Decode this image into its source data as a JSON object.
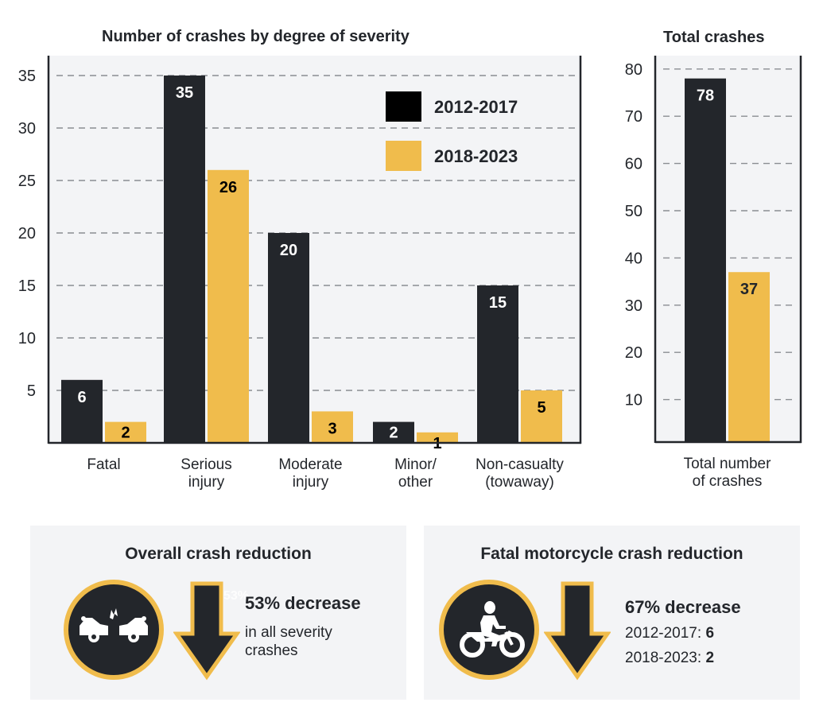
{
  "colors": {
    "dark": "#23262b",
    "gold": "#f0bc4c",
    "legend_dark": "#000000",
    "plot_bg": "#f3f4f6",
    "grid": "#8a8d92"
  },
  "chart_data": [
    {
      "type": "bar",
      "title": "Number of crashes by degree of severity",
      "categories": [
        "Fatal",
        "Serious injury",
        "Moderate injury",
        "Minor/ other",
        "Non-casualty (towaway)"
      ],
      "category_lines": [
        [
          "Fatal"
        ],
        [
          "Serious",
          "injury"
        ],
        [
          "Moderate",
          "injury"
        ],
        [
          "Minor/",
          "other"
        ],
        [
          "Non-casualty",
          "(towaway)"
        ]
      ],
      "series": [
        {
          "name": "2012-2017",
          "color": "#23262b",
          "values": [
            6,
            35,
            20,
            2,
            15
          ]
        },
        {
          "name": "2018-2023",
          "color": "#f0bc4c",
          "values": [
            2,
            26,
            3,
            1,
            5
          ]
        }
      ],
      "xlabel": "",
      "ylabel": "",
      "ylim": [
        0,
        35
      ],
      "yticks": [
        5,
        10,
        15,
        20,
        25,
        30,
        35
      ],
      "grid": true,
      "legend": {
        "placement": "top-right",
        "entries": [
          "2012-2017",
          "2018-2023"
        ]
      }
    },
    {
      "type": "bar",
      "title": "Total crashes",
      "categories": [
        "Total number of crashes"
      ],
      "category_lines": [
        [
          "Total number",
          "of crashes"
        ]
      ],
      "series": [
        {
          "name": "2012-2017",
          "color": "#23262b",
          "values": [
            78
          ]
        },
        {
          "name": "2018-2023",
          "color": "#f0bc4c",
          "values": [
            37
          ]
        }
      ],
      "xlabel": "",
      "ylabel": "",
      "ylim": [
        0,
        80
      ],
      "yticks": [
        10,
        20,
        30,
        40,
        50,
        60,
        70,
        80
      ],
      "grid": true
    }
  ],
  "panels": {
    "overall": {
      "title": "Overall crash reduction",
      "icon": "car-crash-icon",
      "ghost_text": "53%",
      "headline": "53% decrease",
      "lines": [
        "in all severity",
        "crashes"
      ]
    },
    "motorcycle": {
      "title": "Fatal motorcycle crash reduction",
      "icon": "motorcycle-icon",
      "headline": "67% decrease",
      "stats": [
        {
          "label": "2012-2017:",
          "value": "6"
        },
        {
          "label": "2018-2023:",
          "value": "2"
        }
      ]
    }
  }
}
